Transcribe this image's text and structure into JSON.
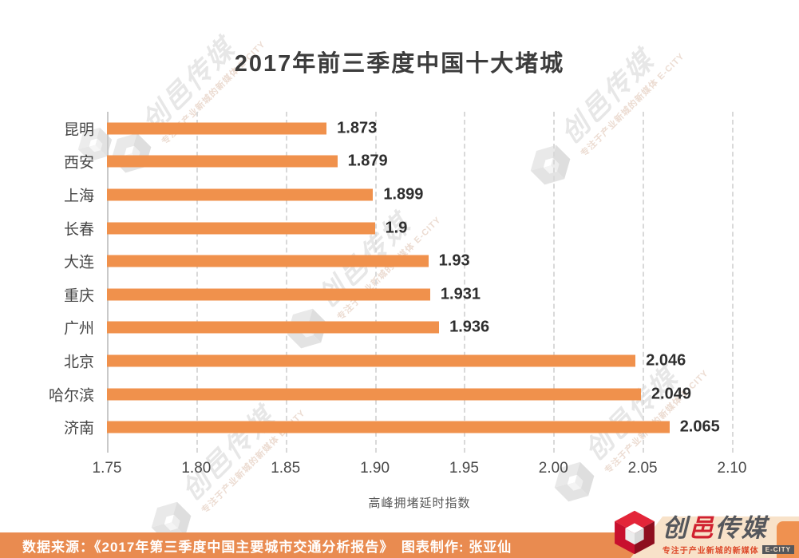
{
  "title": "2017年前三季度中国十大堵城",
  "chart_data": {
    "type": "bar",
    "orientation": "horizontal",
    "title": "2017年前三季度中国十大堵城",
    "categories": [
      "昆明",
      "西安",
      "上海",
      "长春",
      "大连",
      "重庆",
      "广州",
      "北京",
      "哈尔滨",
      "济南"
    ],
    "values": [
      1.873,
      1.879,
      1.899,
      1.9,
      1.93,
      1.931,
      1.936,
      2.046,
      2.049,
      2.065
    ],
    "xlabel": "高峰拥堵延时指数",
    "ylabel": "",
    "xlim": [
      1.75,
      2.1
    ],
    "xticks": [
      "1.75",
      "1.80",
      "1.85",
      "1.90",
      "1.95",
      "2.00",
      "2.05",
      "2.10"
    ],
    "grid": "vertical-dashed",
    "legend": "none"
  },
  "colors": {
    "bar": "#f0914c",
    "footer_bg": "#e98b50",
    "logo_red": "#d0212f",
    "panel_peach": "#f8e2c9",
    "gridline": "#d9d9d9",
    "axis_line": "#c9c9c9"
  },
  "footer": {
    "text": "数据来源：《2017年第三季度中国主要城市交通分析报告》　图表制作: 张亚仙"
  },
  "logo": {
    "name_prefix": "创",
    "name_red": "邑",
    "name_suffix": "传媒",
    "tagline": "专注于产业新城的新媒体",
    "badge": "E-CITY"
  },
  "watermark": {
    "name": "创邑传媒",
    "tagline": "专注于产业新城的新媒体 E-CITY"
  }
}
